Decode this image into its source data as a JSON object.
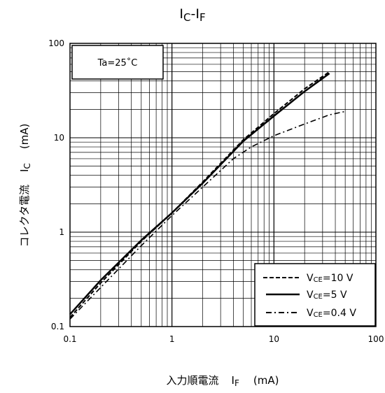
{
  "chart_data": {
    "type": "line",
    "title": {
      "main_1": "I",
      "sub_1": "C",
      "sep": "-",
      "main_2": "I",
      "sub_2": "F"
    },
    "xlabel": {
      "text": "入力順電流",
      "symbol": "I",
      "symbol_sub": "F",
      "unit": "(mA)"
    },
    "ylabel": {
      "text": "コレクタ電流",
      "symbol": "I",
      "symbol_sub": "C",
      "unit": "(mA)"
    },
    "x_scale": "log",
    "y_scale": "log",
    "xlim": [
      0.1,
      100
    ],
    "ylim": [
      0.1,
      100
    ],
    "x_ticks": [
      "0.1",
      "1",
      "10",
      "100"
    ],
    "y_ticks": [
      "0.1",
      "1",
      "10",
      "100"
    ],
    "grid": true,
    "annotation": "Ta=25˚C",
    "legend_position": "bottom-right",
    "series": [
      {
        "name": {
          "prefix": "V",
          "sub": "CE",
          "suffix": "=10  V"
        },
        "style": "dashed",
        "x": [
          0.1,
          0.2,
          0.5,
          1,
          2,
          5,
          10,
          20,
          35
        ],
        "y": [
          0.125,
          0.29,
          0.8,
          1.6,
          3.4,
          9.5,
          18,
          33,
          50
        ]
      },
      {
        "name": {
          "prefix": "V",
          "sub": "CE",
          "suffix": "=5  V"
        },
        "style": "solid",
        "x": [
          0.1,
          0.2,
          0.5,
          1,
          2,
          5,
          10,
          20,
          35
        ],
        "y": [
          0.135,
          0.31,
          0.82,
          1.6,
          3.3,
          9.2,
          17,
          31,
          48
        ]
      },
      {
        "name": {
          "prefix": "V",
          "sub": "CE",
          "suffix": "=0.4  V"
        },
        "style": "dashdot",
        "x": [
          0.1,
          0.2,
          0.5,
          1,
          2,
          4,
          6,
          10,
          20,
          35,
          50
        ],
        "y": [
          0.12,
          0.26,
          0.72,
          1.5,
          3.0,
          6.0,
          8.0,
          10.5,
          14,
          17.5,
          19
        ]
      }
    ]
  }
}
